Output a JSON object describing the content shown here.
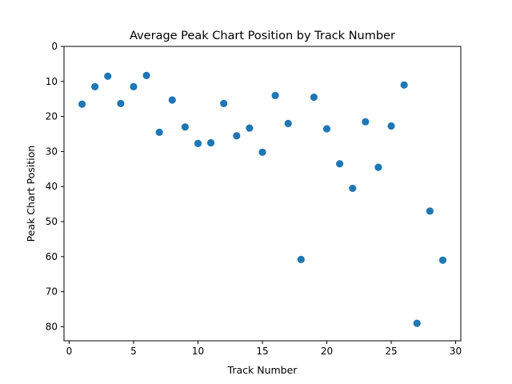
{
  "chart_data": {
    "type": "scatter",
    "title": "Average Peak Chart Position by Track Number",
    "xlabel": "Track Number",
    "ylabel": "Peak Chart Position",
    "xlim": [
      -0.4,
      30.4
    ],
    "ylim": [
      84,
      0
    ],
    "y_inverted": true,
    "grid": false,
    "legend": "none",
    "marker_color": "#1f77b4",
    "x_ticks": [
      0,
      5,
      10,
      15,
      20,
      25,
      30
    ],
    "y_ticks": [
      0,
      10,
      20,
      30,
      40,
      50,
      60,
      70,
      80
    ],
    "points": [
      {
        "x": 1,
        "y": 16.5
      },
      {
        "x": 2,
        "y": 11.5
      },
      {
        "x": 3,
        "y": 8.5
      },
      {
        "x": 4,
        "y": 16.3
      },
      {
        "x": 5,
        "y": 11.5
      },
      {
        "x": 6,
        "y": 8.3
      },
      {
        "x": 7,
        "y": 24.5
      },
      {
        "x": 8,
        "y": 15.3
      },
      {
        "x": 9,
        "y": 23.0
      },
      {
        "x": 10,
        "y": 27.7
      },
      {
        "x": 11,
        "y": 27.5
      },
      {
        "x": 12,
        "y": 16.3
      },
      {
        "x": 13,
        "y": 25.5
      },
      {
        "x": 14,
        "y": 23.3
      },
      {
        "x": 15,
        "y": 30.2
      },
      {
        "x": 16,
        "y": 14.0
      },
      {
        "x": 17,
        "y": 22.0
      },
      {
        "x": 18,
        "y": 60.8
      },
      {
        "x": 19,
        "y": 14.5
      },
      {
        "x": 20,
        "y": 23.5
      },
      {
        "x": 21,
        "y": 33.5
      },
      {
        "x": 22,
        "y": 40.5
      },
      {
        "x": 23,
        "y": 21.5
      },
      {
        "x": 24,
        "y": 34.5
      },
      {
        "x": 25,
        "y": 22.7
      },
      {
        "x": 26,
        "y": 11.0
      },
      {
        "x": 27,
        "y": 79.0
      },
      {
        "x": 28,
        "y": 47.0
      },
      {
        "x": 29,
        "y": 61.0
      }
    ]
  }
}
